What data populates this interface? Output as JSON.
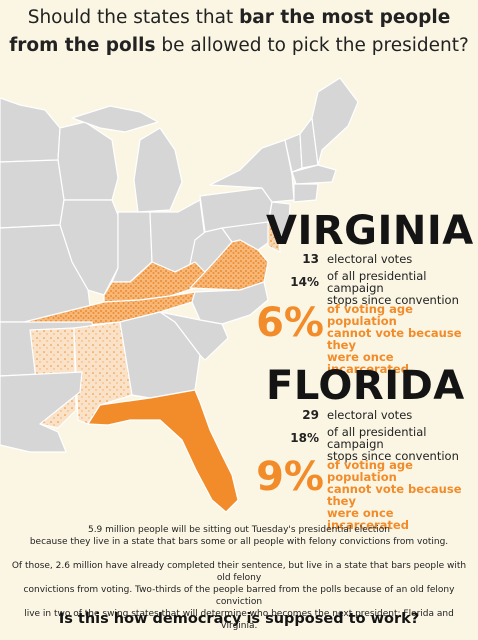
{
  "title": {
    "part1": "Should the states that ",
    "bold1": "bar the most people",
    "bold2": "from the polls",
    "part2": " be allowed to pick the president?"
  },
  "states": [
    {
      "name": "VIRGINIA",
      "electoral_votes": "13",
      "electoral_label": "electoral votes",
      "stops_pct": "14%",
      "stops_label_1": "of all presidential campaign",
      "stops_label_2": "stops since convention",
      "barred_pct": "6%",
      "barred_label_1": "of voting age population",
      "barred_label_2": "cannot vote because they",
      "barred_label_3": "were once incarcerated"
    },
    {
      "name": "FLORIDA",
      "electoral_votes": "29",
      "electoral_label": "electoral votes",
      "stops_pct": "18%",
      "stops_label_1": "of all presidential campaign",
      "stops_label_2": "stops since convention",
      "barred_pct": "9%",
      "barred_label_1": "of voting age population",
      "barred_label_2": "cannot vote because they",
      "barred_label_3": "were once incarcerated"
    }
  ],
  "paragraph1": {
    "line1": "5.9 million people will be sitting out Tuesday's presidential election",
    "line2": "because they live in a state that bars some or all people with felony convictions from voting."
  },
  "paragraph2": {
    "line1": "Of those, 2.6 million have already completed their sentence, but live in a state that bars people with old felony",
    "line2": "convictions from voting. Two-thirds of the people barred from the polls because of an old felony conviction",
    "line3": "live in two of the swing states that will determine who becomes the next president: Florida and Virginia."
  },
  "footer": "Is this how democracy is supposed to work?",
  "colors": {
    "background": "#fbf6e4",
    "accent": "#f28c2a",
    "state_fill": "#d6d6d6",
    "state_border": "#ffffff"
  }
}
